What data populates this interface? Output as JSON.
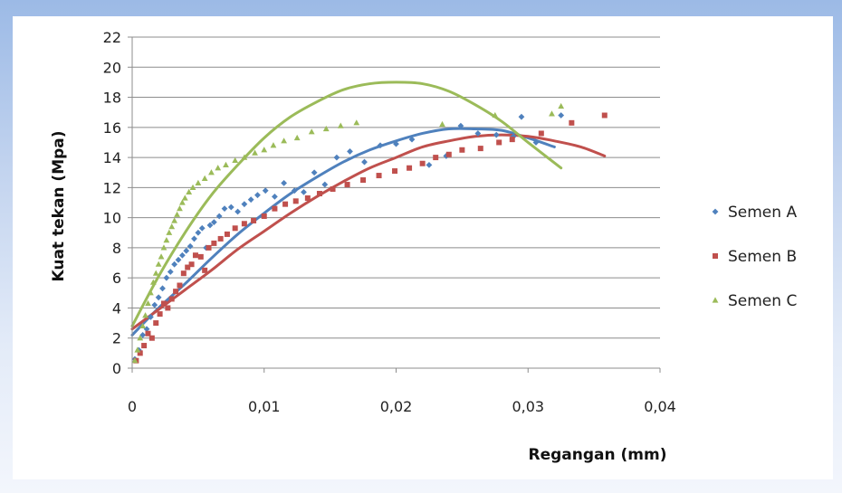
{
  "chart_data": {
    "type": "scatter",
    "title": "",
    "xlabel": "Regangan (mm)",
    "ylabel": "Kuat tekan (Mpa)",
    "xlim": [
      0,
      0.04
    ],
    "ylim": [
      0,
      22
    ],
    "x_ticks": [
      0,
      0.01,
      0.02,
      0.03,
      0.04
    ],
    "x_tick_labels": [
      "0",
      "0,01",
      "0,02",
      "0,03",
      "0,04"
    ],
    "y_ticks": [
      0,
      2,
      4,
      6,
      8,
      10,
      12,
      14,
      16,
      18,
      20,
      22
    ],
    "y_tick_labels": [
      "0",
      "2",
      "4",
      "6",
      "8",
      "10",
      "12",
      "14",
      "16",
      "18",
      "20",
      "22"
    ],
    "grid": "horizontal",
    "legend_position": "right",
    "series": [
      {
        "name": "Semen A",
        "color": "#4f81bd",
        "marker": "diamond",
        "points": [
          [
            0.0002,
            0.6
          ],
          [
            0.0005,
            1.2
          ],
          [
            0.0008,
            2.2
          ],
          [
            0.0011,
            2.6
          ],
          [
            0.0014,
            3.4
          ],
          [
            0.0017,
            4.2
          ],
          [
            0.002,
            4.7
          ],
          [
            0.0023,
            5.3
          ],
          [
            0.0026,
            6.0
          ],
          [
            0.0029,
            6.4
          ],
          [
            0.0032,
            6.9
          ],
          [
            0.0035,
            7.2
          ],
          [
            0.0038,
            7.5
          ],
          [
            0.0041,
            7.8
          ],
          [
            0.0044,
            8.1
          ],
          [
            0.0047,
            8.6
          ],
          [
            0.005,
            9.0
          ],
          [
            0.0053,
            9.3
          ],
          [
            0.0056,
            8.0
          ],
          [
            0.0059,
            9.5
          ],
          [
            0.0062,
            9.7
          ],
          [
            0.0066,
            10.1
          ],
          [
            0.007,
            10.6
          ],
          [
            0.0075,
            10.7
          ],
          [
            0.008,
            10.4
          ],
          [
            0.0085,
            10.9
          ],
          [
            0.009,
            11.2
          ],
          [
            0.0095,
            11.5
          ],
          [
            0.0101,
            11.8
          ],
          [
            0.0108,
            11.4
          ],
          [
            0.0115,
            12.3
          ],
          [
            0.0123,
            11.8
          ],
          [
            0.013,
            11.7
          ],
          [
            0.0138,
            13.0
          ],
          [
            0.0146,
            12.2
          ],
          [
            0.0155,
            14.0
          ],
          [
            0.0165,
            14.4
          ],
          [
            0.0176,
            13.7
          ],
          [
            0.0188,
            14.8
          ],
          [
            0.02,
            14.9
          ],
          [
            0.0212,
            15.2
          ],
          [
            0.0225,
            13.5
          ],
          [
            0.0238,
            14.1
          ],
          [
            0.0249,
            16.1
          ],
          [
            0.0262,
            15.6
          ],
          [
            0.0276,
            15.5
          ],
          [
            0.0289,
            15.4
          ],
          [
            0.0295,
            16.7
          ],
          [
            0.0306,
            15.0
          ],
          [
            0.0325,
            16.8
          ]
        ],
        "trend": [
          [
            0,
            2.2
          ],
          [
            0.002,
            4.0
          ],
          [
            0.004,
            5.6
          ],
          [
            0.006,
            7.3
          ],
          [
            0.008,
            8.9
          ],
          [
            0.01,
            10.3
          ],
          [
            0.012,
            11.6
          ],
          [
            0.014,
            12.7
          ],
          [
            0.016,
            13.7
          ],
          [
            0.018,
            14.5
          ],
          [
            0.02,
            15.1
          ],
          [
            0.022,
            15.6
          ],
          [
            0.024,
            15.9
          ],
          [
            0.026,
            15.9
          ],
          [
            0.028,
            15.8
          ],
          [
            0.03,
            15.3
          ],
          [
            0.032,
            14.7
          ]
        ]
      },
      {
        "name": "Semen B",
        "color": "#c0504d",
        "marker": "square",
        "points": [
          [
            0.0003,
            0.5
          ],
          [
            0.0006,
            1.0
          ],
          [
            0.0009,
            1.5
          ],
          [
            0.0012,
            2.3
          ],
          [
            0.0015,
            2.0
          ],
          [
            0.0018,
            3.0
          ],
          [
            0.0021,
            3.6
          ],
          [
            0.0024,
            4.3
          ],
          [
            0.0027,
            4.0
          ],
          [
            0.003,
            4.6
          ],
          [
            0.0033,
            5.1
          ],
          [
            0.0036,
            5.5
          ],
          [
            0.0039,
            6.3
          ],
          [
            0.0042,
            6.7
          ],
          [
            0.0045,
            6.9
          ],
          [
            0.0048,
            7.5
          ],
          [
            0.0052,
            7.4
          ],
          [
            0.0055,
            6.5
          ],
          [
            0.0058,
            8.0
          ],
          [
            0.0062,
            8.3
          ],
          [
            0.0067,
            8.6
          ],
          [
            0.0072,
            8.9
          ],
          [
            0.0078,
            9.3
          ],
          [
            0.0085,
            9.6
          ],
          [
            0.0092,
            9.8
          ],
          [
            0.01,
            10.1
          ],
          [
            0.0108,
            10.6
          ],
          [
            0.0116,
            10.9
          ],
          [
            0.0124,
            11.1
          ],
          [
            0.0133,
            11.3
          ],
          [
            0.0142,
            11.6
          ],
          [
            0.0152,
            11.9
          ],
          [
            0.0163,
            12.2
          ],
          [
            0.0175,
            12.5
          ],
          [
            0.0187,
            12.8
          ],
          [
            0.0199,
            13.1
          ],
          [
            0.021,
            13.3
          ],
          [
            0.022,
            13.6
          ],
          [
            0.023,
            14.0
          ],
          [
            0.024,
            14.2
          ],
          [
            0.025,
            14.5
          ],
          [
            0.0264,
            14.6
          ],
          [
            0.0278,
            15.0
          ],
          [
            0.0288,
            15.2
          ],
          [
            0.031,
            15.6
          ],
          [
            0.0333,
            16.3
          ],
          [
            0.0358,
            16.8
          ]
        ],
        "trend": [
          [
            0,
            2.6
          ],
          [
            0.002,
            3.9
          ],
          [
            0.004,
            5.2
          ],
          [
            0.006,
            6.5
          ],
          [
            0.008,
            7.9
          ],
          [
            0.01,
            9.1
          ],
          [
            0.012,
            10.3
          ],
          [
            0.014,
            11.4
          ],
          [
            0.016,
            12.4
          ],
          [
            0.018,
            13.3
          ],
          [
            0.02,
            14.0
          ],
          [
            0.022,
            14.7
          ],
          [
            0.024,
            15.1
          ],
          [
            0.026,
            15.4
          ],
          [
            0.028,
            15.5
          ],
          [
            0.03,
            15.4
          ],
          [
            0.032,
            15.1
          ],
          [
            0.034,
            14.7
          ],
          [
            0.0358,
            14.1
          ]
        ]
      },
      {
        "name": "Semen C",
        "color": "#9bbb59",
        "marker": "triangle",
        "points": [
          [
            0.0002,
            0.5
          ],
          [
            0.0004,
            1.2
          ],
          [
            0.0006,
            2.0
          ],
          [
            0.0008,
            2.8
          ],
          [
            0.001,
            3.5
          ],
          [
            0.0012,
            4.3
          ],
          [
            0.0014,
            5.0
          ],
          [
            0.0016,
            5.7
          ],
          [
            0.0018,
            6.3
          ],
          [
            0.002,
            6.9
          ],
          [
            0.0022,
            7.4
          ],
          [
            0.0024,
            8.0
          ],
          [
            0.0026,
            8.5
          ],
          [
            0.0028,
            9.0
          ],
          [
            0.003,
            9.4
          ],
          [
            0.0032,
            9.8
          ],
          [
            0.0034,
            10.2
          ],
          [
            0.0036,
            10.6
          ],
          [
            0.0038,
            11.0
          ],
          [
            0.004,
            11.3
          ],
          [
            0.0043,
            11.7
          ],
          [
            0.0046,
            12.0
          ],
          [
            0.005,
            12.3
          ],
          [
            0.0055,
            12.6
          ],
          [
            0.006,
            13.0
          ],
          [
            0.0065,
            13.3
          ],
          [
            0.0071,
            13.5
          ],
          [
            0.0078,
            13.8
          ],
          [
            0.0085,
            14.0
          ],
          [
            0.0093,
            14.3
          ],
          [
            0.01,
            14.5
          ],
          [
            0.0107,
            14.8
          ],
          [
            0.0115,
            15.1
          ],
          [
            0.0125,
            15.3
          ],
          [
            0.0136,
            15.7
          ],
          [
            0.0147,
            15.9
          ],
          [
            0.0158,
            16.1
          ],
          [
            0.017,
            16.3
          ],
          [
            0.0235,
            16.2
          ],
          [
            0.0275,
            16.8
          ],
          [
            0.0318,
            16.9
          ],
          [
            0.0325,
            17.4
          ]
        ],
        "trend": [
          [
            0,
            2.8
          ],
          [
            0.002,
            6.1
          ],
          [
            0.004,
            9.0
          ],
          [
            0.006,
            11.5
          ],
          [
            0.008,
            13.5
          ],
          [
            0.01,
            15.3
          ],
          [
            0.012,
            16.7
          ],
          [
            0.014,
            17.7
          ],
          [
            0.016,
            18.5
          ],
          [
            0.018,
            18.9
          ],
          [
            0.02,
            19.0
          ],
          [
            0.022,
            18.9
          ],
          [
            0.024,
            18.4
          ],
          [
            0.026,
            17.5
          ],
          [
            0.028,
            16.4
          ],
          [
            0.03,
            15.0
          ],
          [
            0.0325,
            13.3
          ]
        ]
      }
    ]
  }
}
